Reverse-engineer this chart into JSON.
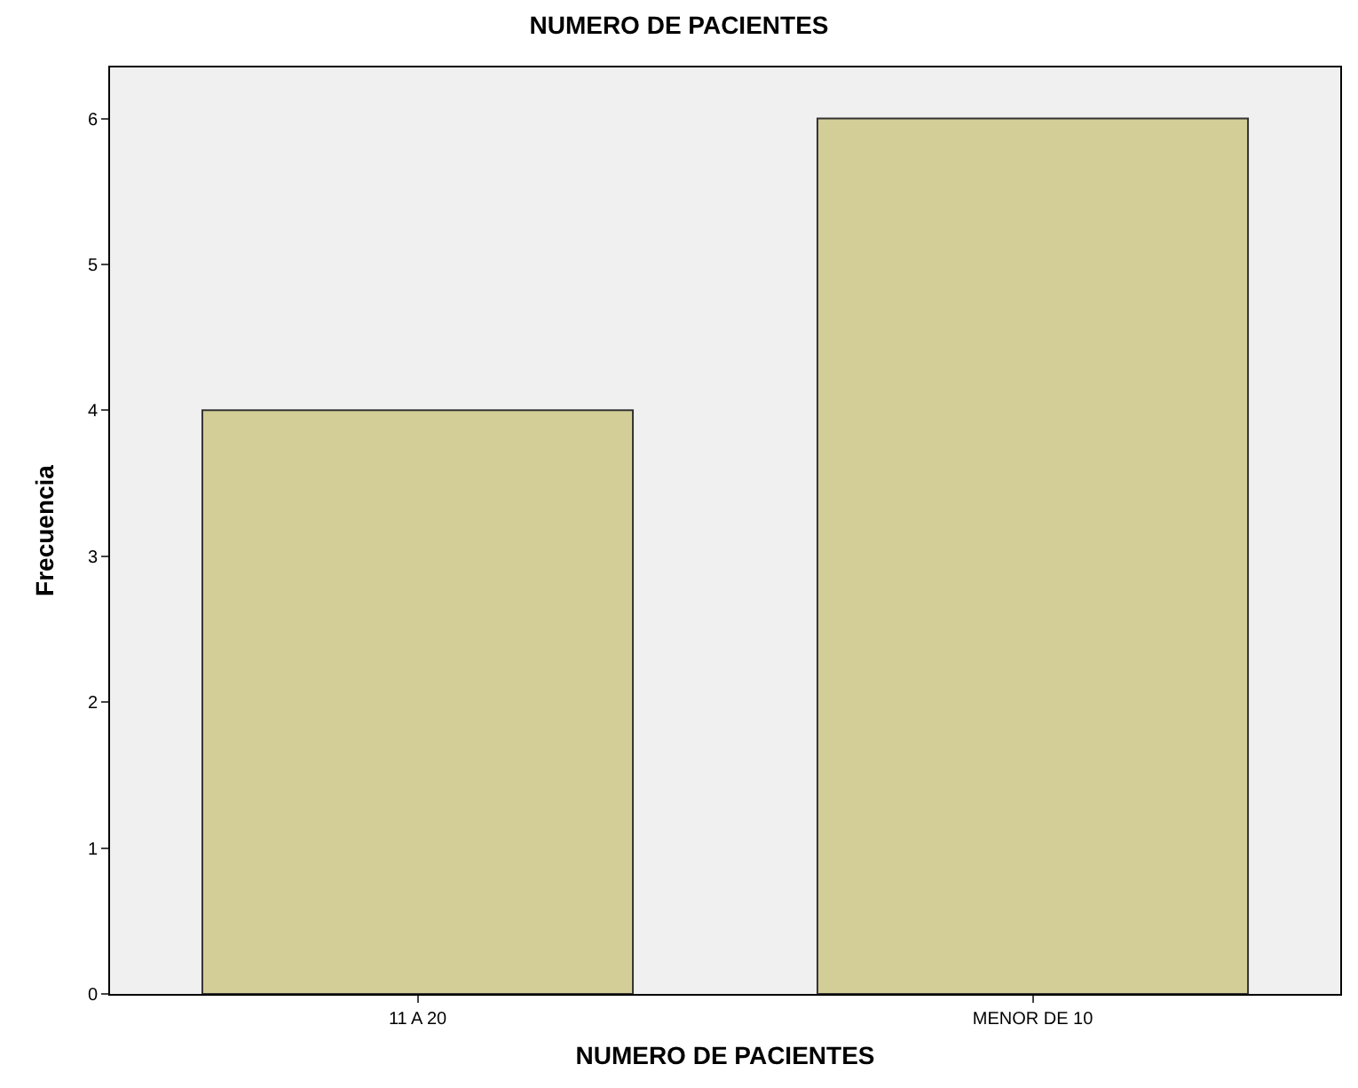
{
  "chart_data": {
    "type": "bar",
    "title": "NUMERO DE PACIENTES",
    "xlabel": "NUMERO DE PACIENTES",
    "ylabel": "Frecuencia",
    "categories": [
      "11 A 20",
      "MENOR DE 10"
    ],
    "values": [
      4,
      6
    ],
    "color": "#d3ce97",
    "ylim": [
      0,
      6.35
    ],
    "yticks": [
      0,
      1,
      2,
      3,
      4,
      5,
      6
    ],
    "grid": false,
    "legend": false
  }
}
